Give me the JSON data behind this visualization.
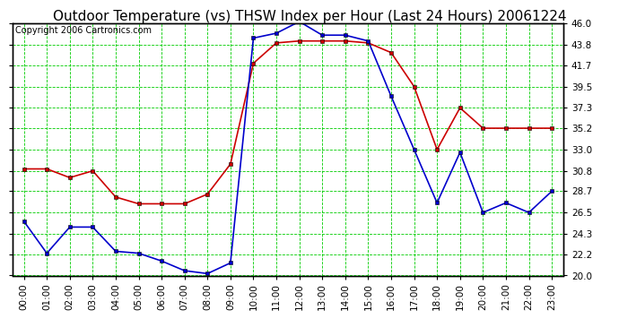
{
  "title": "Outdoor Temperature (vs) THSW Index per Hour (Last 24 Hours) 20061224",
  "copyright": "Copyright 2006 Cartronics.com",
  "hours": [
    "00:00",
    "01:00",
    "02:00",
    "03:00",
    "04:00",
    "05:00",
    "06:00",
    "07:00",
    "08:00",
    "09:00",
    "10:00",
    "11:00",
    "12:00",
    "13:00",
    "14:00",
    "15:00",
    "16:00",
    "17:00",
    "18:00",
    "19:00",
    "20:00",
    "21:00",
    "22:00",
    "23:00"
  ],
  "temp": [
    31.0,
    31.0,
    30.1,
    30.8,
    28.1,
    27.4,
    27.4,
    27.4,
    28.4,
    31.5,
    41.9,
    44.0,
    44.2,
    44.2,
    44.2,
    44.0,
    43.0,
    39.5,
    33.0,
    37.3,
    35.2,
    35.2,
    35.2,
    35.2
  ],
  "thsw": [
    25.6,
    22.3,
    25.0,
    25.0,
    22.5,
    22.3,
    21.5,
    20.5,
    20.2,
    21.3,
    44.5,
    45.0,
    46.2,
    44.8,
    44.8,
    44.2,
    38.5,
    33.0,
    27.5,
    32.7,
    26.5,
    27.5,
    26.5,
    28.7
  ],
  "temp_color": "#cc0000",
  "thsw_color": "#0000cc",
  "bg_color": "#ffffff",
  "grid_color": "#00cc00",
  "ymin": 20.0,
  "ymax": 46.0,
  "yticks": [
    20.0,
    22.2,
    24.3,
    26.5,
    28.7,
    30.8,
    33.0,
    35.2,
    37.3,
    39.5,
    41.7,
    43.8,
    46.0
  ],
  "title_fontsize": 11,
  "copyright_fontsize": 7,
  "tick_fontsize": 7.5,
  "markersize": 3,
  "linewidth": 1.2
}
